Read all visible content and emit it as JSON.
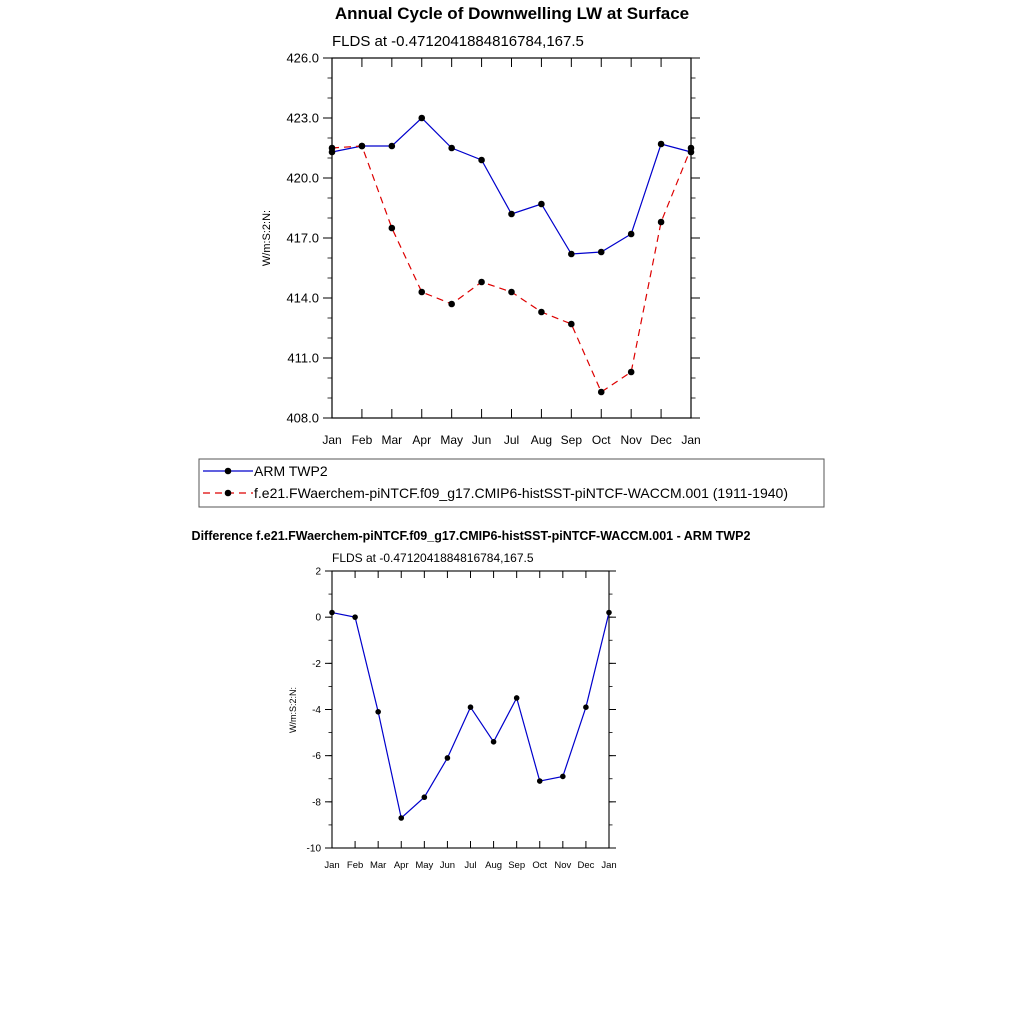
{
  "chart_data": [
    {
      "type": "line",
      "title": "Annual Cycle of Downwelling LW at Surface",
      "subtitle": "FLDS at -0.4712041884816784,167.5",
      "xlabel": "",
      "ylabel": "W/m:S:2:N:",
      "categories": [
        "Jan",
        "Feb",
        "Mar",
        "Apr",
        "May",
        "Jun",
        "Jul",
        "Aug",
        "Sep",
        "Oct",
        "Nov",
        "Dec",
        "Jan"
      ],
      "ylim": [
        408.0,
        426.0
      ],
      "yticks": [
        "408.0",
        "411.0",
        "414.0",
        "417.0",
        "420.0",
        "423.0",
        "426.0"
      ],
      "grid": false,
      "legend_position": "bottom",
      "series": [
        {
          "name": "ARM TWP2",
          "color": "#0000cc",
          "dash": "solid",
          "values": [
            421.3,
            421.6,
            421.6,
            423.0,
            421.5,
            420.9,
            418.2,
            418.7,
            416.2,
            416.3,
            417.2,
            421.7,
            421.3
          ]
        },
        {
          "name": "f.e21.FWaerchem-piNTCF.f09_g17.CMIP6-histSST-piNTCF-WACCM.001 (1911-1940)",
          "color": "#dd0000",
          "dash": "dashed",
          "values": [
            421.5,
            421.6,
            417.5,
            414.3,
            413.7,
            414.8,
            414.3,
            413.3,
            412.7,
            409.3,
            410.3,
            417.8,
            421.5
          ]
        }
      ]
    },
    {
      "type": "line",
      "title": "Difference f.e21.FWaerchem-piNTCF.f09_g17.CMIP6-histSST-piNTCF-WACCM.001 - ARM TWP2",
      "subtitle": "FLDS at -0.4712041884816784,167.5",
      "xlabel": "",
      "ylabel": "W/m:S:2:N:",
      "categories": [
        "Jan",
        "Feb",
        "Mar",
        "Apr",
        "May",
        "Jun",
        "Jul",
        "Aug",
        "Sep",
        "Oct",
        "Nov",
        "Dec",
        "Jan"
      ],
      "ylim": [
        -10,
        2
      ],
      "yticks": [
        "-10",
        "-8",
        "-6",
        "-4",
        "-2",
        "0",
        "2"
      ],
      "grid": false,
      "series": [
        {
          "name": "Difference",
          "color": "#0000cc",
          "dash": "solid",
          "values": [
            0.2,
            0.0,
            -4.1,
            -8.7,
            -7.8,
            -6.1,
            -3.9,
            -5.4,
            -3.5,
            -7.1,
            -6.9,
            -3.9,
            0.2
          ]
        }
      ]
    }
  ]
}
